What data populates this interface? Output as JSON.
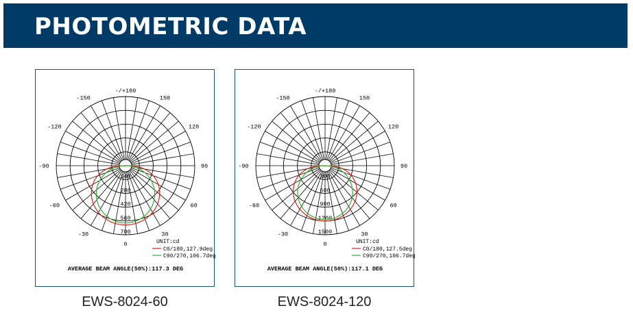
{
  "header": {
    "title": "PHOTOMETRIC DATA"
  },
  "charts": [
    {
      "model": "EWS-8024-60",
      "chart_data": {
        "type": "polar",
        "angle_labels": {
          "top": "-/+180",
          "bottom": "0",
          "left": [
            "-150",
            "-120",
            "-90",
            "-60",
            "-30"
          ],
          "right": [
            "150",
            "120",
            "90",
            "60",
            "30"
          ]
        },
        "ring_labels": [
          "140",
          "280",
          "420",
          "560",
          "700"
        ],
        "r_max": 700,
        "unit": "UNIT:cd",
        "series": [
          {
            "name": "C0/180,127.9deg",
            "color": "#e02020",
            "peak": 600,
            "shape": "round"
          },
          {
            "name": "C90/270,106.7deg",
            "color": "#30b030",
            "peak": 580,
            "shape": "narrow"
          }
        ],
        "beam_angle_text": "AVERAGE BEAM ANGLE(50%):117.3 DEG"
      }
    },
    {
      "model": "EWS-8024-120",
      "chart_data": {
        "type": "polar",
        "angle_labels": {
          "top": "-/+180",
          "bottom": "0",
          "left": [
            "-150",
            "-120",
            "-90",
            "-60",
            "-30"
          ],
          "right": [
            "150",
            "120",
            "90",
            "60",
            "30"
          ]
        },
        "ring_labels": [
          "300",
          "600",
          "900",
          "1200",
          "1500"
        ],
        "r_max": 1500,
        "unit": "UNIT:cd",
        "series": [
          {
            "name": "C0/180,127.5deg",
            "color": "#e02020",
            "peak": 1200,
            "shape": "round"
          },
          {
            "name": "C90/270,106.7deg",
            "color": "#30b030",
            "peak": 1170,
            "shape": "narrow"
          }
        ],
        "beam_angle_text": "AVERAGE BEAM ANGLE(50%):117.1 DEG"
      }
    }
  ]
}
